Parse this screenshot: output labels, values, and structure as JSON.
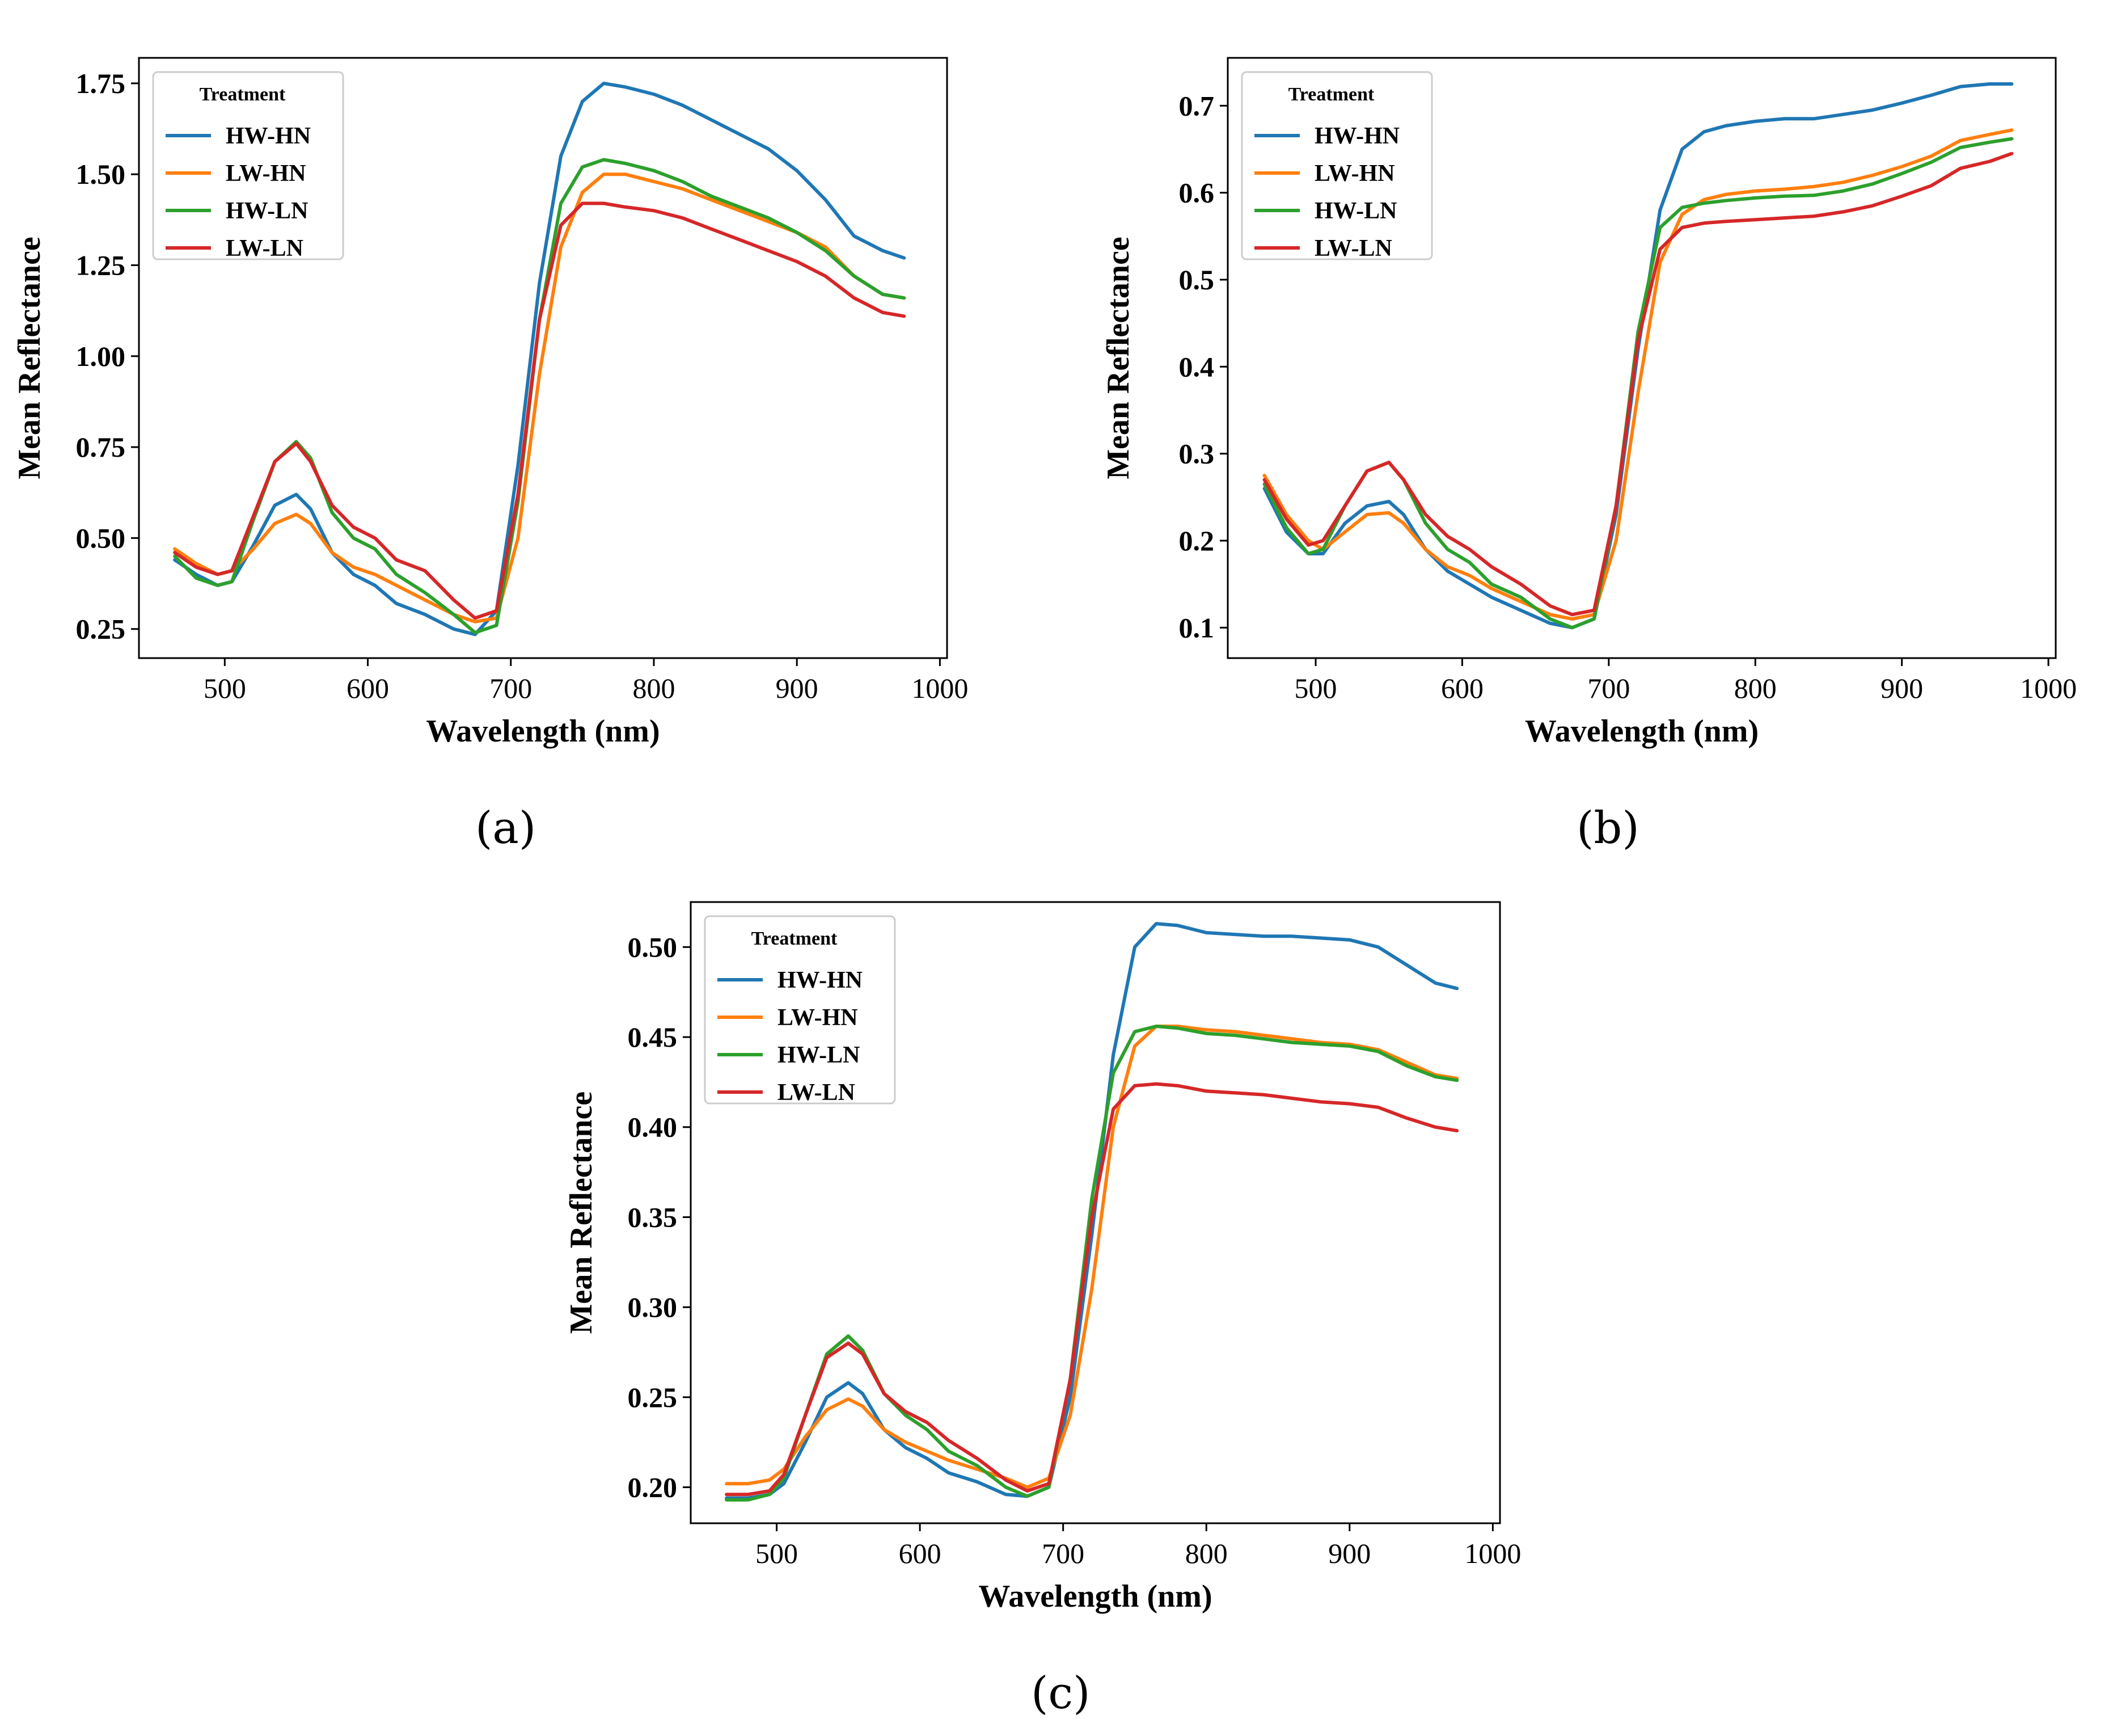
{
  "colors": {
    "HW-HN": "#1f77b4",
    "LW-HN": "#ff7f0e",
    "HW-LN": "#2ca02c",
    "LW-LN": "#d62728"
  },
  "chart_data": [
    {
      "type": "line",
      "panel_label": "(a)",
      "xlabel": "Wavelength (nm)",
      "ylabel": "Mean Reflectance",
      "xlim": [
        440,
        1005
      ],
      "ylim": [
        0.17,
        1.82
      ],
      "xticks": [
        500,
        600,
        700,
        800,
        900,
        1000
      ],
      "yticks": [
        0.25,
        0.5,
        0.75,
        1.0,
        1.25,
        1.5,
        1.75
      ],
      "ytick_labels": [
        "0.25",
        "0.50",
        "0.75",
        "1.00",
        "1.25",
        "1.50",
        "1.75"
      ],
      "legend": {
        "title": "Treatment",
        "position": "top-left"
      },
      "x": [
        465,
        480,
        495,
        505,
        520,
        535,
        550,
        560,
        575,
        590,
        605,
        620,
        640,
        660,
        675,
        690,
        705,
        720,
        735,
        750,
        765,
        780,
        800,
        820,
        840,
        860,
        880,
        900,
        920,
        940,
        960,
        975
      ],
      "series": [
        {
          "name": "HW-HN",
          "values": [
            0.44,
            0.4,
            0.37,
            0.38,
            0.48,
            0.59,
            0.62,
            0.58,
            0.46,
            0.4,
            0.37,
            0.32,
            0.29,
            0.25,
            0.235,
            0.3,
            0.7,
            1.2,
            1.55,
            1.7,
            1.75,
            1.74,
            1.72,
            1.69,
            1.65,
            1.61,
            1.57,
            1.51,
            1.43,
            1.33,
            1.29,
            1.27
          ]
        },
        {
          "name": "LW-HN",
          "values": [
            0.47,
            0.43,
            0.4,
            0.41,
            0.47,
            0.54,
            0.565,
            0.54,
            0.46,
            0.42,
            0.4,
            0.37,
            0.33,
            0.29,
            0.27,
            0.28,
            0.5,
            0.95,
            1.3,
            1.45,
            1.5,
            1.5,
            1.48,
            1.46,
            1.43,
            1.4,
            1.37,
            1.34,
            1.3,
            1.22,
            1.17,
            1.16
          ]
        },
        {
          "name": "HW-LN",
          "values": [
            0.45,
            0.39,
            0.37,
            0.38,
            0.55,
            0.71,
            0.765,
            0.72,
            0.57,
            0.5,
            0.47,
            0.4,
            0.35,
            0.29,
            0.24,
            0.26,
            0.6,
            1.1,
            1.42,
            1.52,
            1.54,
            1.53,
            1.51,
            1.48,
            1.44,
            1.41,
            1.38,
            1.34,
            1.29,
            1.22,
            1.17,
            1.16
          ]
        },
        {
          "name": "LW-LN",
          "values": [
            0.46,
            0.42,
            0.4,
            0.41,
            0.56,
            0.71,
            0.76,
            0.71,
            0.59,
            0.53,
            0.5,
            0.44,
            0.41,
            0.33,
            0.28,
            0.3,
            0.62,
            1.1,
            1.36,
            1.42,
            1.42,
            1.41,
            1.4,
            1.38,
            1.35,
            1.32,
            1.29,
            1.26,
            1.22,
            1.16,
            1.12,
            1.11
          ]
        }
      ]
    },
    {
      "type": "line",
      "panel_label": "(b)",
      "xlabel": "Wavelength (nm)",
      "ylabel": "Mean Reflectance",
      "xlim": [
        440,
        1005
      ],
      "ylim": [
        0.065,
        0.755
      ],
      "xticks": [
        500,
        600,
        700,
        800,
        900,
        1000
      ],
      "yticks": [
        0.1,
        0.2,
        0.3,
        0.4,
        0.5,
        0.6,
        0.7
      ],
      "ytick_labels": [
        "0.1",
        "0.2",
        "0.3",
        "0.4",
        "0.5",
        "0.6",
        "0.7"
      ],
      "legend": {
        "title": "Treatment",
        "position": "top-left"
      },
      "x": [
        465,
        480,
        495,
        505,
        520,
        535,
        550,
        560,
        575,
        590,
        605,
        620,
        640,
        660,
        675,
        690,
        705,
        720,
        735,
        750,
        765,
        780,
        800,
        820,
        840,
        860,
        880,
        900,
        920,
        940,
        960,
        975
      ],
      "series": [
        {
          "name": "HW-HN",
          "values": [
            0.26,
            0.21,
            0.185,
            0.185,
            0.22,
            0.24,
            0.245,
            0.23,
            0.19,
            0.165,
            0.15,
            0.135,
            0.12,
            0.105,
            0.1,
            0.11,
            0.23,
            0.42,
            0.58,
            0.65,
            0.67,
            0.677,
            0.682,
            0.685,
            0.685,
            0.69,
            0.695,
            0.703,
            0.712,
            0.722,
            0.725,
            0.725
          ]
        },
        {
          "name": "LW-HN",
          "values": [
            0.275,
            0.23,
            0.2,
            0.19,
            0.21,
            0.23,
            0.232,
            0.22,
            0.19,
            0.17,
            0.16,
            0.145,
            0.13,
            0.115,
            0.11,
            0.115,
            0.2,
            0.37,
            0.52,
            0.575,
            0.592,
            0.598,
            0.602,
            0.604,
            0.607,
            0.612,
            0.62,
            0.63,
            0.642,
            0.66,
            0.667,
            0.672
          ]
        },
        {
          "name": "HW-LN",
          "values": [
            0.265,
            0.215,
            0.185,
            0.19,
            0.24,
            0.28,
            0.29,
            0.27,
            0.22,
            0.19,
            0.175,
            0.15,
            0.135,
            0.11,
            0.1,
            0.11,
            0.24,
            0.44,
            0.56,
            0.583,
            0.588,
            0.591,
            0.594,
            0.596,
            0.597,
            0.602,
            0.61,
            0.622,
            0.635,
            0.652,
            0.658,
            0.662
          ]
        },
        {
          "name": "LW-LN",
          "values": [
            0.27,
            0.225,
            0.195,
            0.2,
            0.24,
            0.28,
            0.29,
            0.27,
            0.23,
            0.205,
            0.19,
            0.17,
            0.15,
            0.125,
            0.115,
            0.12,
            0.24,
            0.43,
            0.535,
            0.56,
            0.565,
            0.567,
            0.569,
            0.571,
            0.573,
            0.578,
            0.585,
            0.596,
            0.608,
            0.628,
            0.636,
            0.645
          ]
        }
      ]
    },
    {
      "type": "line",
      "panel_label": "(c)",
      "xlabel": "Wavelength (nm)",
      "ylabel": "Mean Reflectance",
      "xlim": [
        440,
        1005
      ],
      "ylim": [
        0.18,
        0.525
      ],
      "xticks": [
        500,
        600,
        700,
        800,
        900,
        1000
      ],
      "yticks": [
        0.2,
        0.25,
        0.3,
        0.35,
        0.4,
        0.45,
        0.5
      ],
      "ytick_labels": [
        "0.20",
        "0.25",
        "0.30",
        "0.35",
        "0.40",
        "0.45",
        "0.50"
      ],
      "legend": {
        "title": "Treatment",
        "position": "top-left"
      },
      "x": [
        465,
        480,
        495,
        505,
        520,
        535,
        550,
        560,
        575,
        590,
        605,
        620,
        640,
        660,
        675,
        690,
        705,
        720,
        735,
        750,
        765,
        780,
        800,
        820,
        840,
        860,
        880,
        900,
        920,
        940,
        960,
        975
      ],
      "series": [
        {
          "name": "HW-HN",
          "values": [
            0.194,
            0.194,
            0.196,
            0.202,
            0.225,
            0.25,
            0.258,
            0.252,
            0.232,
            0.222,
            0.216,
            0.208,
            0.203,
            0.196,
            0.195,
            0.2,
            0.25,
            0.34,
            0.44,
            0.5,
            0.513,
            0.512,
            0.508,
            0.507,
            0.506,
            0.506,
            0.505,
            0.504,
            0.5,
            0.49,
            0.48,
            0.477
          ]
        },
        {
          "name": "LW-HN",
          "values": [
            0.202,
            0.202,
            0.204,
            0.21,
            0.228,
            0.243,
            0.249,
            0.245,
            0.232,
            0.225,
            0.22,
            0.215,
            0.21,
            0.205,
            0.2,
            0.205,
            0.24,
            0.31,
            0.4,
            0.445,
            0.456,
            0.456,
            0.454,
            0.453,
            0.451,
            0.449,
            0.447,
            0.446,
            0.443,
            0.436,
            0.429,
            0.427
          ]
        },
        {
          "name": "HW-LN",
          "values": [
            0.193,
            0.193,
            0.196,
            0.205,
            0.24,
            0.274,
            0.284,
            0.276,
            0.252,
            0.24,
            0.232,
            0.22,
            0.212,
            0.2,
            0.195,
            0.2,
            0.26,
            0.36,
            0.43,
            0.453,
            0.456,
            0.455,
            0.452,
            0.451,
            0.449,
            0.447,
            0.446,
            0.445,
            0.442,
            0.434,
            0.428,
            0.426
          ]
        },
        {
          "name": "LW-LN",
          "values": [
            0.196,
            0.196,
            0.198,
            0.207,
            0.24,
            0.272,
            0.28,
            0.274,
            0.252,
            0.242,
            0.236,
            0.226,
            0.216,
            0.204,
            0.198,
            0.202,
            0.26,
            0.35,
            0.41,
            0.423,
            0.424,
            0.423,
            0.42,
            0.419,
            0.418,
            0.416,
            0.414,
            0.413,
            0.411,
            0.405,
            0.4,
            0.398
          ]
        }
      ]
    }
  ]
}
